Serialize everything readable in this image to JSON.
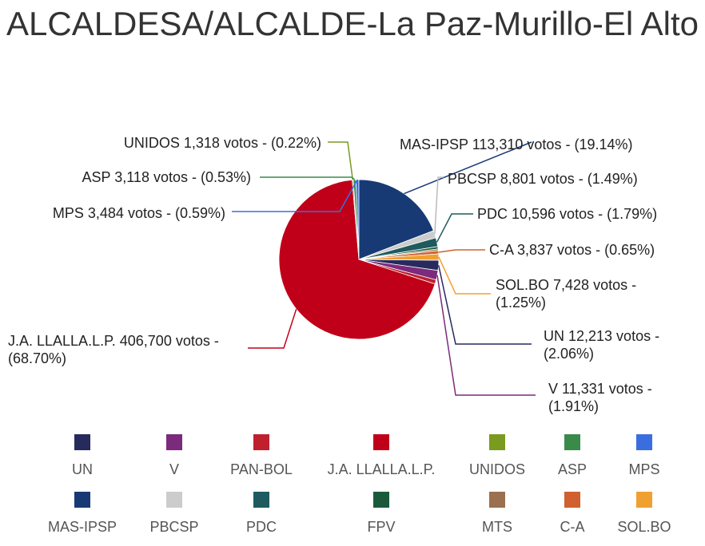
{
  "chart_data": {
    "type": "pie",
    "title": "ALCALDESA/ALCALDE-La Paz-Murillo-El Alto",
    "categories": [
      "UN",
      "V",
      "PAN-BOL",
      "J.A. LLALLA.L.P.",
      "UNIDOS",
      "ASP",
      "MPS",
      "MAS-IPSP",
      "PBCSP",
      "PDC",
      "FPV",
      "MTS",
      "C-A",
      "SOL.BO"
    ],
    "values": [
      12213,
      11331,
      5000,
      406700,
      1318,
      3118,
      3484,
      113310,
      8801,
      10596,
      2900,
      2000,
      3837,
      7428
    ],
    "value_labels": [
      "UN 12,213 votos - (2.06%)",
      "V 11,331 votos - (1.91%)",
      null,
      "J.A. LLALLA.L.P. 406,700 votos - (68.70%)",
      "UNIDOS 1,318 votos - (0.22%)",
      "ASP 3,118 votos - (0.53%)",
      "MPS 3,484 votos - (0.59%)",
      "MAS-IPSP 113,310 votos - (19.14%)",
      "PBCSP 8,801 votos - (1.49%)",
      "PDC 10,596 votos - (1.79%)",
      null,
      null,
      "C-A 3,837 votos - (0.65%)",
      "SOL.BO 7,428 votos - (1.25%)"
    ],
    "colors": [
      "#262a5c",
      "#7b2a7c",
      "#c0202e",
      "#c00018",
      "#7a9a20",
      "#3a8a4a",
      "#3a6ee0",
      "#173a74",
      "#cccccc",
      "#1e5a5e",
      "#1a5a3a",
      "#9a7050",
      "#d06030",
      "#f0a030"
    ]
  }
}
